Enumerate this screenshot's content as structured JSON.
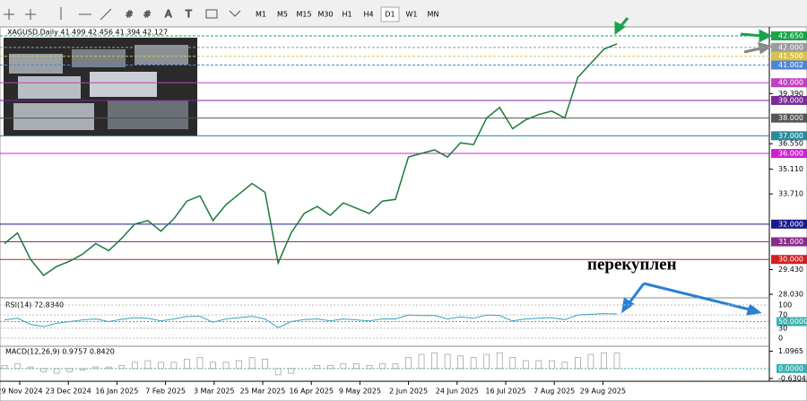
{
  "toolbar": {
    "timeframes": [
      "M1",
      "M5",
      "M15",
      "M30",
      "H1",
      "H4",
      "D1",
      "W1",
      "MN"
    ],
    "active": "D1"
  },
  "chart": {
    "header": "XAGUSD,Daily  41.499 42.456 41.394 42.127",
    "ylim": [
      27.93,
      43.16
    ],
    "price_ticks": [
      {
        "value": 42.65,
        "label": "42.650",
        "color": "#1aa34a"
      },
      {
        "value": 42.0,
        "label": "42.000",
        "color": "#9a9a9a"
      },
      {
        "value": 41.5,
        "label": "41.500",
        "color": "#d8c24a"
      },
      {
        "value": 41.002,
        "label": "41.002",
        "color": "#4a86d8"
      },
      {
        "value": 40.0,
        "label": "40.000",
        "color": "#c040c0"
      },
      {
        "value": 39.39,
        "label": "39.390"
      },
      {
        "value": 39.0,
        "label": "39.000",
        "color": "#7a2a9a"
      },
      {
        "value": 38.0,
        "label": "38.000",
        "color": "#555555"
      },
      {
        "value": 37.0,
        "label": "37.000",
        "color": "#2a8a9a"
      },
      {
        "value": 36.55,
        "label": "36.550"
      },
      {
        "value": 36.0,
        "label": "36.000",
        "color": "#d020d0"
      },
      {
        "value": 35.11,
        "label": "35.110"
      },
      {
        "value": 33.71,
        "label": "33.710"
      },
      {
        "value": 32.0,
        "label": "32.000",
        "color": "#1a1a8a"
      },
      {
        "value": 31.0,
        "label": "31.000",
        "color": "#8a2a8a"
      },
      {
        "value": 30.0,
        "label": "30.000",
        "color": "#d02020"
      },
      {
        "value": 29.43,
        "label": "29.430"
      },
      {
        "value": 28.03,
        "label": "28.030"
      }
    ],
    "dates": [
      "29 Nov 2024",
      "23 Dec 2024",
      "16 Jan 2025",
      "7 Feb 2025",
      "3 Mar 2025",
      "25 Mar 2025",
      "16 Apr 2025",
      "9 May 2025",
      "2 Jun 2025",
      "24 Jun 2025",
      "16 Jul 2025",
      "7 Aug 2025",
      "29 Aug 2025"
    ],
    "price": [
      30.9,
      31.5,
      30.0,
      29.1,
      29.6,
      29.9,
      30.3,
      30.9,
      30.5,
      31.2,
      32.0,
      32.2,
      31.6,
      32.3,
      33.3,
      33.6,
      32.2,
      33.1,
      33.7,
      34.3,
      33.8,
      29.8,
      31.5,
      32.6,
      33.0,
      32.5,
      33.2,
      32.9,
      32.6,
      33.3,
      33.4,
      35.8,
      36.0,
      36.2,
      35.8,
      36.6,
      36.5,
      38.0,
      38.6,
      37.4,
      37.9,
      38.2,
      38.4,
      38.0,
      40.3,
      41.1,
      41.9,
      42.2
    ],
    "annotation": "перекуплен",
    "rsi": {
      "label": "RSI(14) 72.8340",
      "ylim": [
        0,
        100
      ],
      "ticks": [
        100,
        70,
        {
          "value": 50,
          "label": "50.0000"
        },
        30,
        0
      ],
      "values": [
        55,
        60,
        42,
        35,
        45,
        50,
        55,
        58,
        50,
        57,
        62,
        60,
        52,
        58,
        65,
        66,
        48,
        58,
        62,
        66,
        58,
        32,
        50,
        56,
        58,
        52,
        58,
        55,
        52,
        58,
        58,
        70,
        68,
        68,
        58,
        64,
        60,
        70,
        68,
        52,
        58,
        60,
        62,
        56,
        70,
        72,
        74,
        73
      ]
    },
    "macd": {
      "label": "MACD(12,26,9) 0.9757 0.8420",
      "ylim": [
        -0.75,
        1.3
      ],
      "ticks": [
        {
          "value": 1.0965,
          "label": "1.0965"
        },
        {
          "value": 0,
          "label": "0.0000"
        },
        {
          "value": -0.6304,
          "label": "-0.6304"
        }
      ],
      "histogram": [
        0.2,
        0.3,
        0.1,
        -0.2,
        -0.3,
        -0.2,
        -0.1,
        0.1,
        0.1,
        0.2,
        0.4,
        0.5,
        0.4,
        0.4,
        0.6,
        0.7,
        0.4,
        0.4,
        0.5,
        0.7,
        0.6,
        -0.4,
        -0.3,
        0.0,
        0.2,
        0.2,
        0.3,
        0.3,
        0.2,
        0.3,
        0.3,
        0.7,
        0.9,
        1.0,
        0.9,
        0.8,
        0.7,
        0.9,
        1.0,
        0.7,
        0.5,
        0.5,
        0.5,
        0.4,
        0.7,
        0.9,
        1.0,
        0.98
      ]
    }
  }
}
